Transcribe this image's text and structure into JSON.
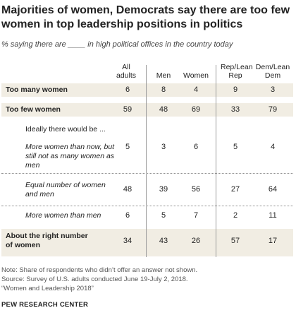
{
  "title": "Majorities of women, Democrats say there are too few women in top leadership positions in politics",
  "subtitle": "% saying there are ____ in high political offices in the country today",
  "columns": [
    "All adults",
    "Men",
    "Women",
    "Rep/Lean Rep",
    "Dem/Lean Dem"
  ],
  "rows": [
    {
      "label": "Too many women",
      "values": [
        "6",
        "8",
        "4",
        "9",
        "3"
      ]
    },
    {
      "label": "Too few women",
      "values": [
        "59",
        "48",
        "69",
        "33",
        "79"
      ]
    },
    {
      "label": "Ideally there would be ...",
      "values": [
        "",
        "",
        "",
        "",
        ""
      ]
    },
    {
      "label": "More women than now, but still not as many women as men",
      "values": [
        "5",
        "3",
        "6",
        "5",
        "4"
      ]
    },
    {
      "label": "Equal number of women and men",
      "values": [
        "48",
        "39",
        "56",
        "27",
        "64"
      ]
    },
    {
      "label": "More women than men",
      "values": [
        "6",
        "5",
        "7",
        "2",
        "11"
      ]
    },
    {
      "label": "About the right number of women",
      "values": [
        "34",
        "43",
        "26",
        "57",
        "17"
      ]
    }
  ],
  "notes": [
    "Note: Share of respondents who didn’t offer an answer not shown.",
    "Source: Survey of U.S. adults conducted June 19-July 2, 2018.",
    "“Women and Leadership 2018”"
  ],
  "org": "PEW RESEARCH CENTER",
  "colors": {
    "highlight_row": "#f1ede3",
    "divider": "#9a9a9a"
  },
  "chart_data": {
    "type": "table",
    "title": "Majorities of women, Democrats say there are too few women in top leadership positions in politics",
    "subtitle": "% saying there are ____ in high political offices in the country today",
    "columns": [
      "All adults",
      "Men",
      "Women",
      "Rep/Lean Rep",
      "Dem/Lean Dem"
    ],
    "categories": [
      "Too many women",
      "Too few women",
      "More women than now, but still not as many women as men",
      "Equal number of women and men",
      "More women than men",
      "About the right number of women"
    ],
    "series": [
      {
        "name": "All adults",
        "values": [
          6,
          59,
          5,
          48,
          6,
          34
        ]
      },
      {
        "name": "Men",
        "values": [
          8,
          48,
          3,
          39,
          5,
          43
        ]
      },
      {
        "name": "Women",
        "values": [
          4,
          69,
          6,
          56,
          7,
          26
        ]
      },
      {
        "name": "Rep/Lean Rep",
        "values": [
          9,
          33,
          5,
          27,
          2,
          57
        ]
      },
      {
        "name": "Dem/Lean Dem",
        "values": [
          3,
          79,
          4,
          64,
          11,
          17
        ]
      }
    ]
  }
}
